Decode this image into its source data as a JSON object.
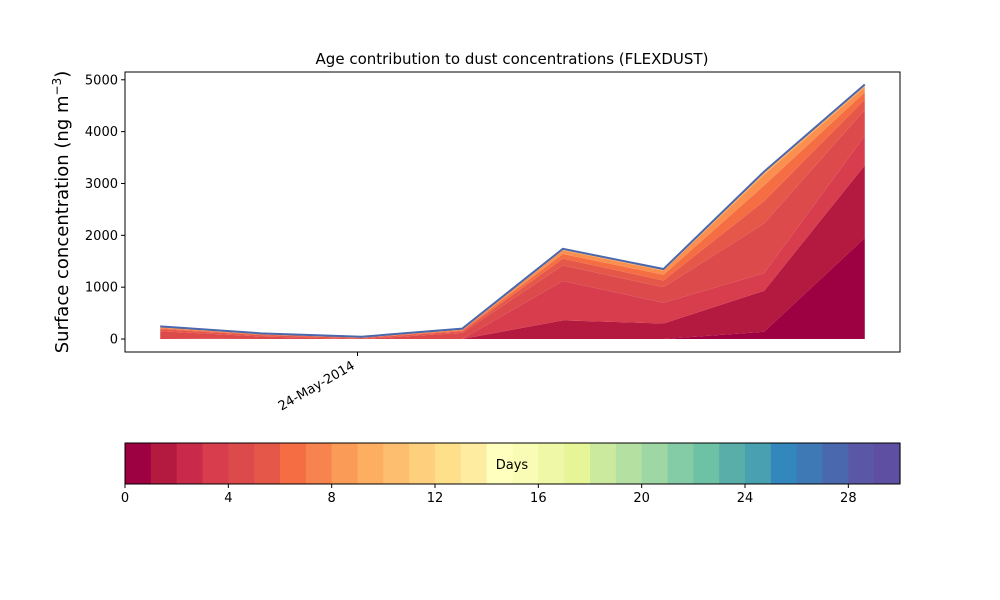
{
  "chart_data": {
    "type": "area",
    "title": "Age contribution to dust concentrations (FLEXDUST)",
    "ylabel": "Surface concentration (ng m",
    "ylabel_superscript": "−3",
    "ylabel_close": ")",
    "xlabel": "",
    "ylim": [
      -250,
      5150
    ],
    "yticks": [
      0,
      1000,
      2000,
      3000,
      4000,
      5000
    ],
    "x_tick_labels": [
      "24-May-2014"
    ],
    "x": [
      0,
      1,
      2,
      3,
      4,
      5,
      6,
      7
    ],
    "x_tick_positions": [
      2
    ],
    "stack_boundaries": [
      {
        "age_days": 1,
        "values": [
          0,
          0,
          0,
          0,
          0,
          0,
          140,
          1950
        ]
      },
      {
        "age_days": 2,
        "values": [
          0,
          0,
          0,
          0,
          360,
          300,
          930,
          3350
        ]
      },
      {
        "age_days": 3,
        "values": [
          10,
          0,
          0,
          0,
          1120,
          700,
          1270,
          3920
        ]
      },
      {
        "age_days": 4,
        "values": [
          150,
          50,
          0,
          120,
          1420,
          1000,
          2230,
          4420
        ]
      },
      {
        "age_days": 5,
        "values": [
          190,
          75,
          20,
          150,
          1550,
          1130,
          2660,
          4620
        ]
      },
      {
        "age_days": 6,
        "values": [
          210,
          90,
          30,
          170,
          1640,
          1240,
          2960,
          4760
        ]
      },
      {
        "age_days": 8,
        "values": [
          230,
          105,
          40,
          185,
          1710,
          1320,
          3170,
          4860
        ]
      },
      {
        "age_days": 30,
        "values": [
          245,
          110,
          45,
          200,
          1740,
          1350,
          3230,
          4910
        ]
      }
    ],
    "colorbar": {
      "label": "Days",
      "min": 0,
      "max": 30,
      "ticks": [
        0,
        4,
        8,
        12,
        16,
        20,
        24,
        28
      ],
      "colors": [
        "#9e0142",
        "#b4193f",
        "#c92a4a",
        "#d73d4d",
        "#dd4a4c",
        "#e55749",
        "#f46d43",
        "#f7844e",
        "#fa9b58",
        "#fdae61",
        "#fdbf6f",
        "#fed07e",
        "#fee08b",
        "#feeda1",
        "#ffffbe",
        "#f9fcb5",
        "#eff8a6",
        "#e6f598",
        "#ccea9e",
        "#b4e0a2",
        "#9fd7a4",
        "#84cca6",
        "#6dc2a5",
        "#5aaea9",
        "#48a0b1",
        "#3288bd",
        "#3e79b6",
        "#4a68ae",
        "#5a58a6",
        "#5e4fa2"
      ]
    }
  }
}
